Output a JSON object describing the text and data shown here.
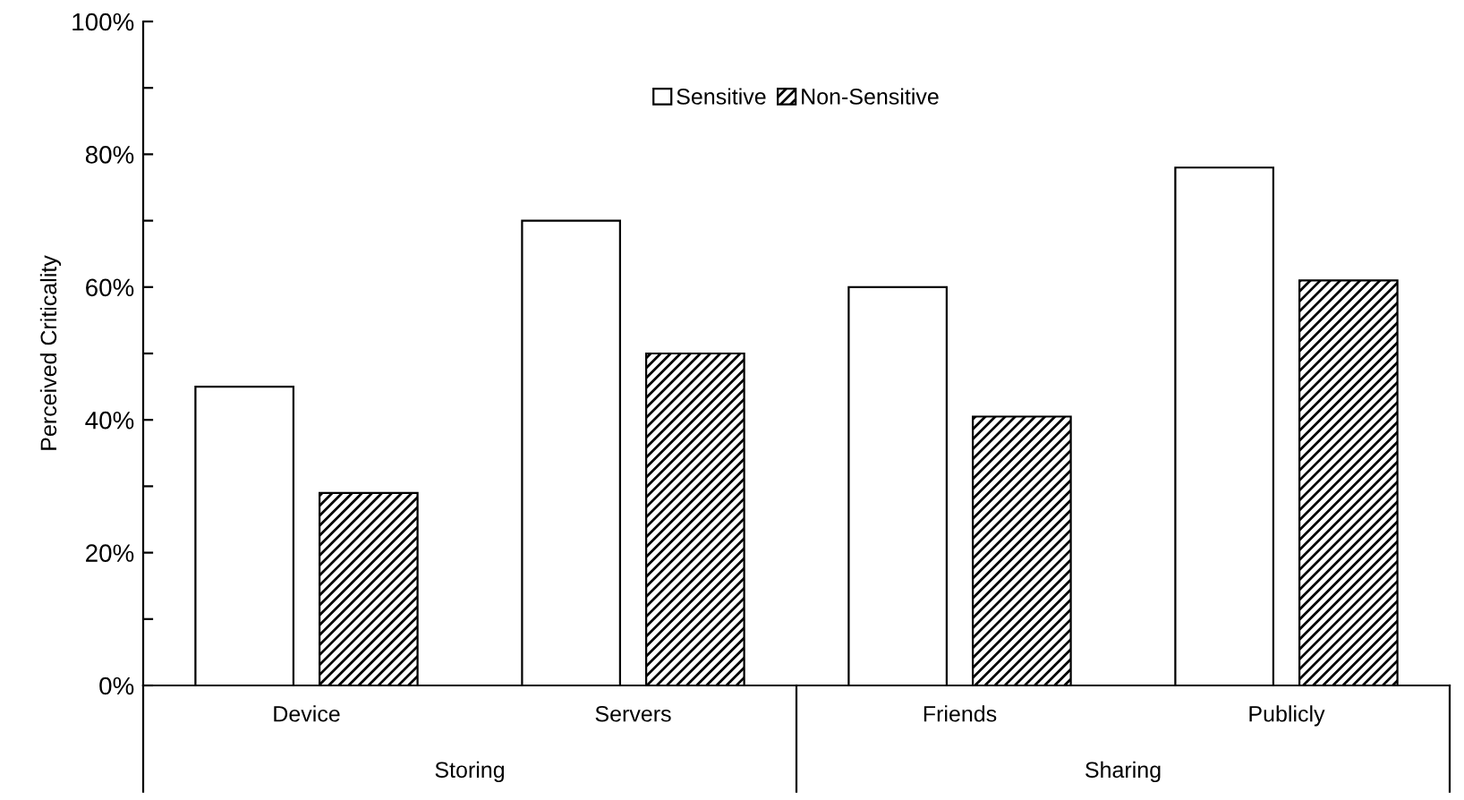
{
  "chart_data": {
    "type": "bar",
    "ylabel": "Perceived Criticality",
    "categories": [
      "Device",
      "Servers",
      "Friends",
      "Publicly"
    ],
    "series": [
      {
        "name": "Sensitive",
        "color": "#ffffff",
        "values": [
          45,
          70,
          60,
          78
        ]
      },
      {
        "name": "Non-Sensitive",
        "color": "#000000",
        "values": [
          29,
          50,
          40.5,
          61
        ]
      }
    ],
    "ylim": [
      0,
      100
    ],
    "yticks": [
      {
        "value": 0,
        "label": "0%"
      },
      {
        "value": 10,
        "label": null
      },
      {
        "value": 20,
        "label": "20%"
      },
      {
        "value": 30,
        "label": null
      },
      {
        "value": 40,
        "label": "40%"
      },
      {
        "value": 50,
        "label": null
      },
      {
        "value": 60,
        "label": "60%"
      },
      {
        "value": 70,
        "label": null
      },
      {
        "value": 80,
        "label": "80%"
      },
      {
        "value": 90,
        "label": null
      },
      {
        "value": 100,
        "label": "100%"
      }
    ],
    "annotations": [
      "Storing",
      "Sharing"
    ],
    "legend": "top",
    "grid": false
  }
}
